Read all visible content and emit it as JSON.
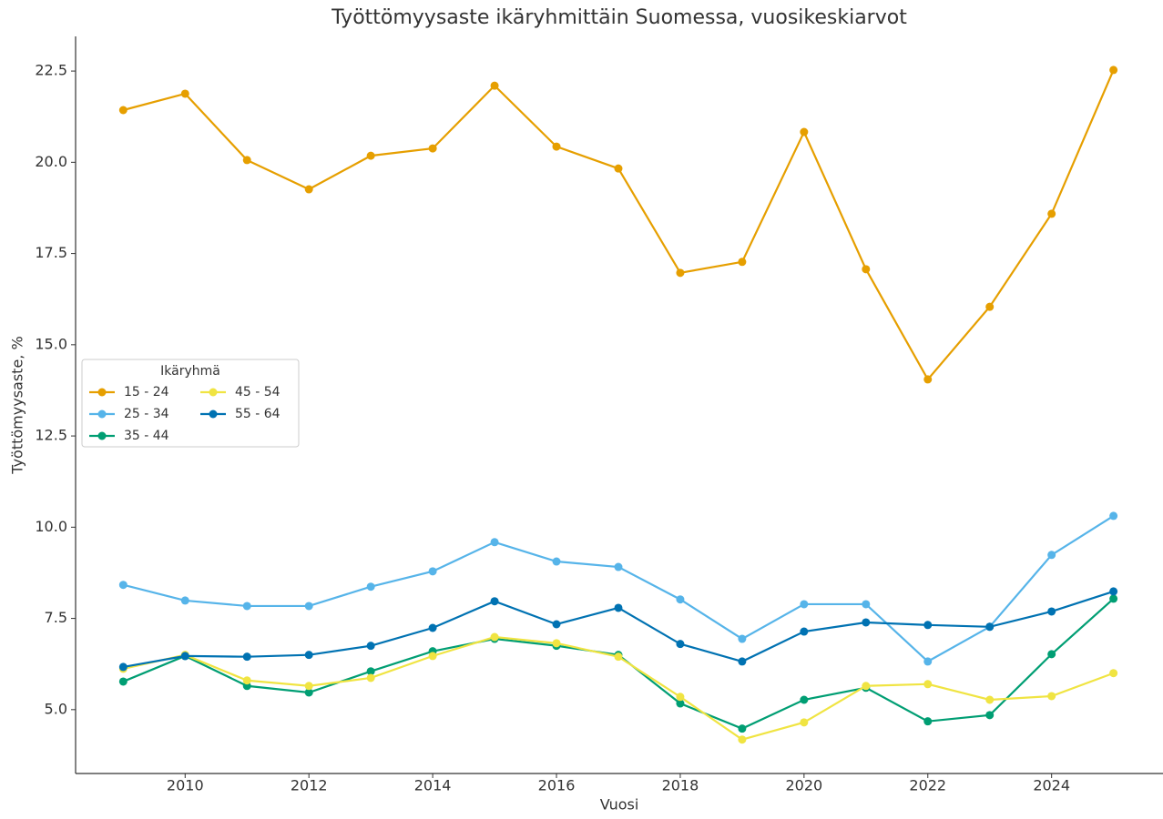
{
  "chart_data": {
    "type": "line",
    "title": "Työttömyysaste ikäryhmittäin Suomessa, vuosikeskiarvot",
    "x_label": "Vuosi",
    "y_label": "Työttömyysaste, %",
    "legend_title": "Ikäryhmä",
    "legend": "center left",
    "x": [
      2009,
      2010,
      2011,
      2012,
      2013,
      2014,
      2015,
      2016,
      2017,
      2018,
      2019,
      2020,
      2021,
      2022,
      2023,
      2024,
      2025
    ],
    "series": [
      {
        "name": "15 - 24",
        "color": "#E69F00",
        "values": [
          21.43,
          21.88,
          20.06,
          19.26,
          20.18,
          20.38,
          22.1,
          20.43,
          19.83,
          16.97,
          17.27,
          20.83,
          17.07,
          14.05,
          16.04,
          18.59,
          22.53
        ]
      },
      {
        "name": "25 - 34",
        "color": "#56B4E9",
        "values": [
          8.42,
          7.99,
          7.84,
          7.84,
          8.37,
          8.79,
          9.59,
          9.06,
          8.91,
          8.02,
          6.94,
          7.89,
          7.89,
          6.32,
          7.27,
          9.24,
          10.31
        ]
      },
      {
        "name": "35 - 44",
        "color": "#009E73",
        "values": [
          5.77,
          6.47,
          5.65,
          5.47,
          6.05,
          6.6,
          6.94,
          6.75,
          6.5,
          5.17,
          4.48,
          5.27,
          5.6,
          4.68,
          4.85,
          6.52,
          8.04
        ]
      },
      {
        "name": "45 - 54",
        "color": "#F0E442",
        "values": [
          6.12,
          6.5,
          5.8,
          5.65,
          5.87,
          6.47,
          6.99,
          6.82,
          6.45,
          5.35,
          4.18,
          4.65,
          5.65,
          5.7,
          5.27,
          5.37,
          6.0
        ]
      },
      {
        "name": "55 - 64",
        "color": "#0072B2",
        "values": [
          6.17,
          6.47,
          6.45,
          6.5,
          6.75,
          7.24,
          7.97,
          7.34,
          7.79,
          6.8,
          6.32,
          7.14,
          7.39,
          7.32,
          7.27,
          7.69,
          8.24
        ]
      }
    ],
    "xlim": [
      2008.23,
      2025.8
    ],
    "xticks": [
      2010,
      2012,
      2014,
      2016,
      2018,
      2020,
      2022,
      2024
    ],
    "ylim": [
      3.25,
      23.45
    ],
    "yticks": [
      {
        "value": 5,
        "label": "5.0"
      },
      7.5,
      {
        "value": 10,
        "label": "10.0"
      },
      12.5,
      {
        "value": 15,
        "label": "15.0"
      },
      17.5,
      {
        "value": 20,
        "label": "20.0"
      },
      22.5
    ],
    "grid": false
  }
}
